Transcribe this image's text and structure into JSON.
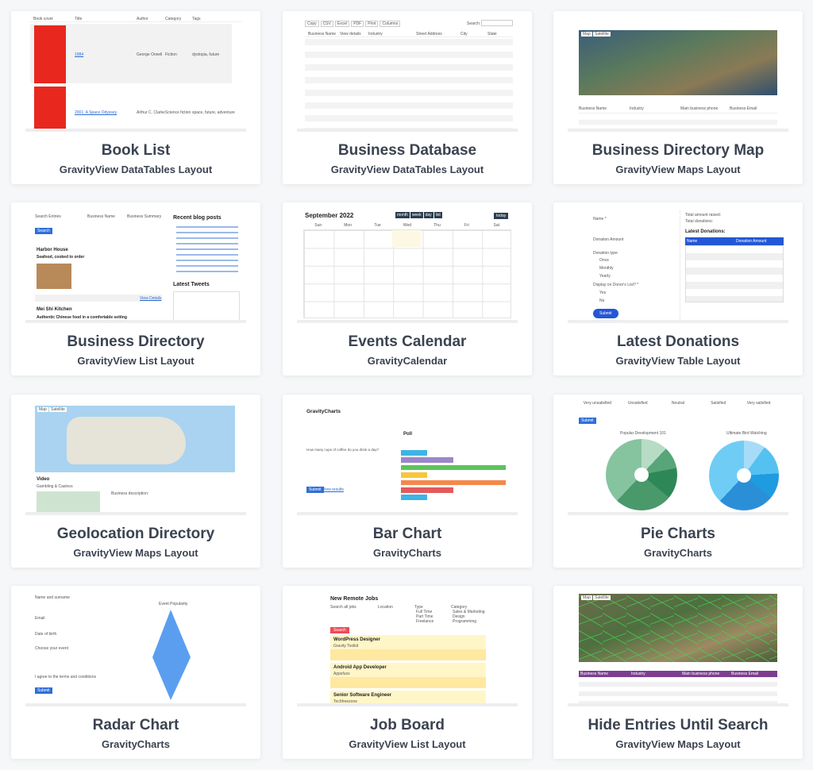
{
  "cards": [
    {
      "title": "Book List",
      "subtitle": "GravityView DataTables Layout",
      "thumb": {
        "headers": [
          "Book cover",
          "Title",
          "Author",
          "Category",
          "Tags"
        ],
        "rows": [
          [
            "1984",
            "George Orwell",
            "Fiction",
            "dystopia, future"
          ],
          [
            "2001: A Space Odyssey",
            "Arthur C. Clarke",
            "Science fiction",
            "space, future, adventure"
          ]
        ]
      }
    },
    {
      "title": "Business Database",
      "subtitle": "GravityView DataTables Layout",
      "thumb": {
        "buttons": [
          "Copy",
          "CSV",
          "Excel",
          "PDF",
          "Print",
          "Columns"
        ],
        "search_label": "Search:",
        "headers": [
          "Business Name",
          "View details",
          "Industry",
          "Street Address",
          "City",
          "State"
        ]
      }
    },
    {
      "title": "Business Directory Map",
      "subtitle": "GravityView Maps Layout",
      "thumb": {
        "map_tabs": [
          "Map",
          "Satellite"
        ],
        "headers": [
          "Business Name",
          "Industry",
          "Main business phone",
          "Business Email"
        ]
      }
    },
    {
      "title": "Business Directory",
      "subtitle": "GravityView List Layout",
      "thumb": {
        "filters": [
          "Search Entries",
          "Business Name",
          "Business Summary"
        ],
        "search_button": "Search",
        "sidebar_heading": "Recent blog posts",
        "tweets_heading": "Latest Tweets",
        "entries": [
          {
            "name": "Harbor House",
            "tagline": "Seafood, cooked to order"
          },
          {
            "name": "Mei Shi Kitchen",
            "tagline": "Authentic Chinese food in a comfortable setting"
          }
        ],
        "view_details": "View Details"
      }
    },
    {
      "title": "Events Calendar",
      "subtitle": "GravityCalendar",
      "thumb": {
        "month": "September 2022",
        "views": [
          "month",
          "week",
          "day",
          "list"
        ],
        "today": "today",
        "days": [
          "Sun",
          "Mon",
          "Tue",
          "Wed",
          "Thu",
          "Fri",
          "Sat"
        ]
      }
    },
    {
      "title": "Latest Donations",
      "subtitle": "GravityView Table Layout",
      "thumb": {
        "form_labels": [
          "Name *",
          "Donation Amount",
          "Donation type",
          "Display on Donor's List? *"
        ],
        "options": [
          "Once",
          "Monthly",
          "Yearly",
          "Yes",
          "No"
        ],
        "submit": "Submit",
        "total_raised_label": "Total amount raised:",
        "total_donations_label": "Total donations:",
        "heading": "Latest Donations:",
        "headers": [
          "Name",
          "Donation Amount"
        ]
      }
    },
    {
      "title": "Geolocation Directory",
      "subtitle": "GravityView Maps Layout",
      "thumb": {
        "map_tabs": [
          "Map",
          "Satellite"
        ],
        "entry_title": "Video",
        "entry_sub": "Gambling & Casinos",
        "desc_label": "Business description:"
      }
    },
    {
      "title": "Bar Chart",
      "subtitle": "GravityCharts",
      "thumb": {
        "heading": "GravityCharts",
        "chart_title": "Poll",
        "question": "How many cups of coffee do you drink a day?",
        "submit": "Submit",
        "view_results": "View results",
        "bar_colors": [
          "#3bb4e6",
          "#9b87c9",
          "#5cc35c",
          "#f7c63d",
          "#f5894a",
          "#e35a5a",
          "#3bb4e6"
        ],
        "bar_values": [
          2,
          4,
          8,
          2,
          8,
          4,
          2
        ]
      }
    },
    {
      "title": "Pie Charts",
      "subtitle": "GravityCharts",
      "thumb": {
        "scale": [
          "Very unsatisfied",
          "Unsatisfied",
          "Neutral",
          "Satisfied",
          "Very satisfied"
        ],
        "submit": "Submit",
        "chart1_title": "Popular Development 101",
        "chart2_title": "Ultimate Bird Watching"
      }
    },
    {
      "title": "Radar Chart",
      "subtitle": "GravityCharts",
      "thumb": {
        "form_labels": [
          "Name and surname",
          "Email",
          "Date of birth",
          "Choose your event",
          "I agree to the terms and conditions"
        ],
        "submit": "Submit",
        "chart_title": "Event Popularity"
      }
    },
    {
      "title": "Job Board",
      "subtitle": "GravityView List Layout",
      "thumb": {
        "heading": "New Remote Jobs",
        "filters": [
          "Search all jobs",
          "Location",
          "Type",
          "Category"
        ],
        "types": [
          "Full Time",
          "Part Time",
          "Freelance"
        ],
        "categories": [
          "Sales & Marketing",
          "Design",
          "Programming"
        ],
        "search": "Search",
        "jobs": [
          {
            "title": "WordPress Designer",
            "company": "Gravity Toolkit"
          },
          {
            "title": "Android App Developer",
            "company": "Appsfuss"
          },
          {
            "title": "Senior Software Engineer",
            "company": "Techfreezone"
          }
        ]
      }
    },
    {
      "title": "Hide Entries Until Search",
      "subtitle": "GravityView Maps Layout",
      "thumb": {
        "map_tabs": [
          "Map",
          "Satellite"
        ],
        "headers": [
          "Business Name",
          "Industry",
          "Main business phone",
          "Business Email"
        ]
      }
    }
  ]
}
